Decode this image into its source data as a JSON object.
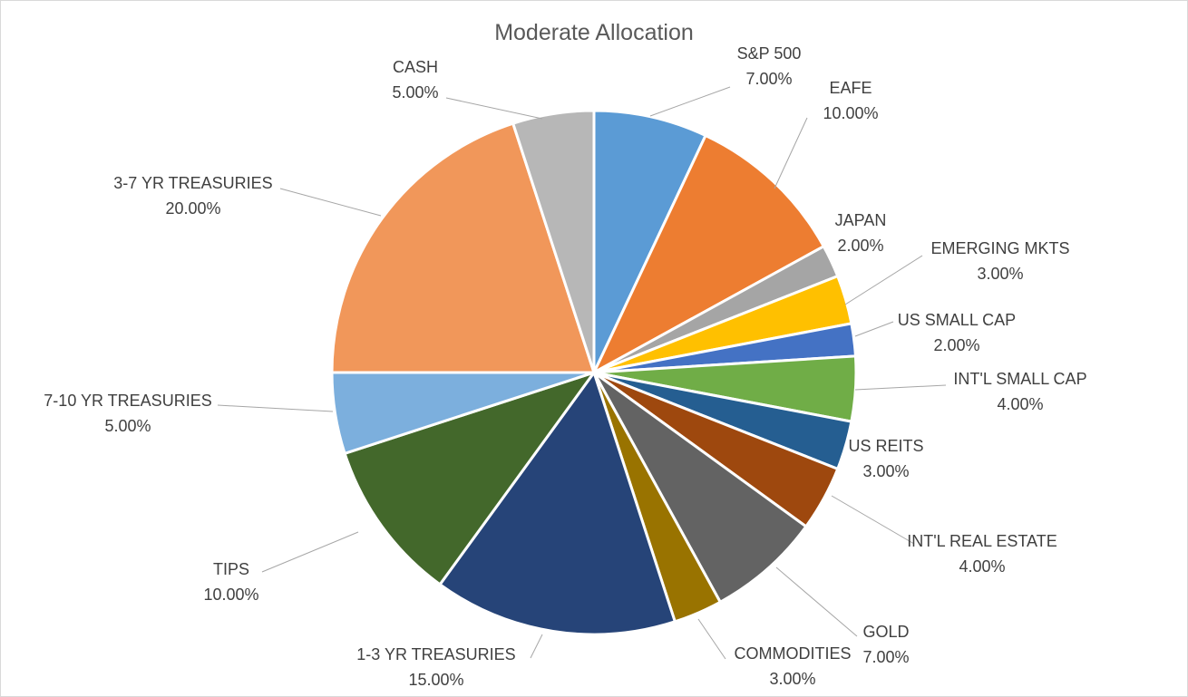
{
  "chart_data": {
    "type": "pie",
    "title": "Moderate Allocation",
    "slices": [
      {
        "name": "S&P 500",
        "value": 7.0,
        "label": "7.00%",
        "color": "#5b9bd5"
      },
      {
        "name": "EAFE",
        "value": 10.0,
        "label": "10.00%",
        "color": "#ed7d31"
      },
      {
        "name": "JAPAN",
        "value": 2.0,
        "label": "2.00%",
        "color": "#a5a5a5"
      },
      {
        "name": "EMERGING MKTS",
        "value": 3.0,
        "label": "3.00%",
        "color": "#ffc000"
      },
      {
        "name": "US SMALL CAP",
        "value": 2.0,
        "label": "2.00%",
        "color": "#4472c4"
      },
      {
        "name": "INT'L SMALL CAP",
        "value": 4.0,
        "label": "4.00%",
        "color": "#70ad47"
      },
      {
        "name": "US REITS",
        "value": 3.0,
        "label": "3.00%",
        "color": "#255e91"
      },
      {
        "name": "INT'L REAL ESTATE",
        "value": 4.0,
        "label": "4.00%",
        "color": "#9e480e"
      },
      {
        "name": "GOLD",
        "value": 7.0,
        "label": "7.00%",
        "color": "#636363"
      },
      {
        "name": "COMMODITIES",
        "value": 3.0,
        "label": "3.00%",
        "color": "#997300"
      },
      {
        "name": "1-3 YR TREASURIES",
        "value": 15.0,
        "label": "15.00%",
        "color": "#264478"
      },
      {
        "name": "TIPS",
        "value": 10.0,
        "label": "10.00%",
        "color": "#43682b"
      },
      {
        "name": "7-10 YR TREASURIES",
        "value": 5.0,
        "label": "5.00%",
        "color": "#7cafdd"
      },
      {
        "name": "3-7 YR TREASURIES",
        "value": 20.0,
        "label": "20.00%",
        "color": "#f1975a"
      },
      {
        "name": "CASH",
        "value": 5.0,
        "label": "5.00%",
        "color": "#b7b7b7"
      }
    ],
    "legend": "none",
    "data_labels": "outside with leader lines"
  }
}
